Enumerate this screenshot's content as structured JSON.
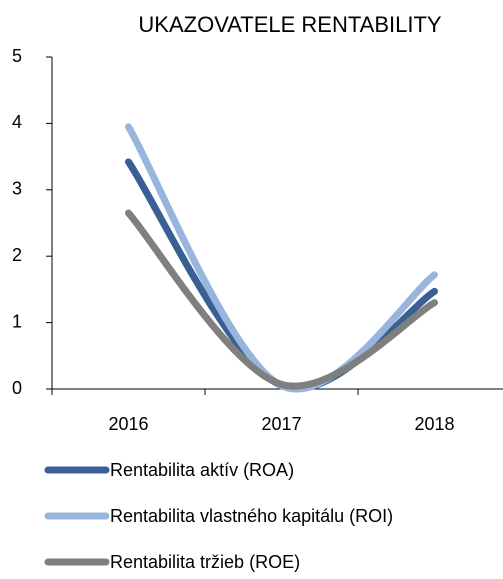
{
  "chart_data": {
    "type": "line",
    "title": "UKAZOVATELE RENTABILITY",
    "categories": [
      "2016",
      "2017",
      "2018"
    ],
    "series": [
      {
        "name": "Rentabilita aktív (ROA)",
        "color": "#3a5f94",
        "values": [
          3.42,
          0.05,
          1.47
        ]
      },
      {
        "name": "Rentabilita vlastného kapitálu (ROI)",
        "color": "#98b6dd",
        "values": [
          3.95,
          0.05,
          1.72
        ]
      },
      {
        "name": "Rentabilita tržieb (ROE)",
        "color": "#7f7f7f",
        "values": [
          2.65,
          0.07,
          1.3
        ]
      }
    ],
    "ylim": [
      0,
      5
    ],
    "yticks": [
      0,
      1,
      2,
      3,
      4,
      5
    ],
    "smooth": true
  }
}
